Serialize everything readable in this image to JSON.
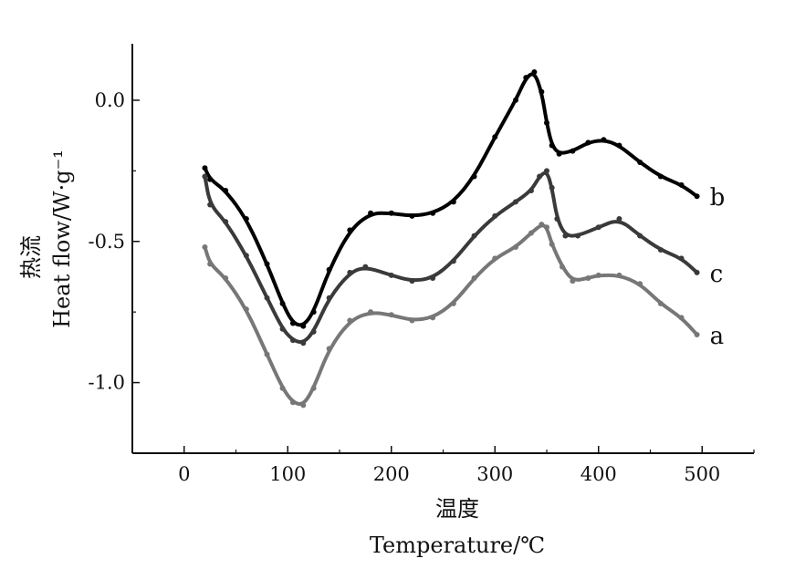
{
  "chart_data": {
    "type": "scatter",
    "xlabel_cn": "温度",
    "xlabel_en": "Temperature/℃",
    "ylabel_cn": "热流",
    "ylabel_en": "Heat  flow/W·g⁻¹",
    "xlim": [
      -50,
      550
    ],
    "ylim": [
      -1.25,
      0.2
    ],
    "x_ticks": [
      0,
      100,
      200,
      300,
      400,
      500
    ],
    "x_tick_labels": [
      "0",
      "100",
      "200",
      "300",
      "400",
      "500"
    ],
    "y_ticks": [
      0.0,
      -0.5,
      -1.0
    ],
    "y_tick_labels": [
      "0.0",
      "-0.5",
      "-1.0"
    ],
    "grid": false,
    "series": [
      {
        "name": "b",
        "color": "#000000",
        "points": [
          [
            20,
            -0.24
          ],
          [
            25,
            -0.28
          ],
          [
            40,
            -0.32
          ],
          [
            60,
            -0.42
          ],
          [
            80,
            -0.58
          ],
          [
            95,
            -0.72
          ],
          [
            105,
            -0.79
          ],
          [
            115,
            -0.8
          ],
          [
            125,
            -0.75
          ],
          [
            140,
            -0.6
          ],
          [
            160,
            -0.46
          ],
          [
            180,
            -0.4
          ],
          [
            200,
            -0.4
          ],
          [
            220,
            -0.41
          ],
          [
            240,
            -0.4
          ],
          [
            260,
            -0.36
          ],
          [
            280,
            -0.27
          ],
          [
            300,
            -0.13
          ],
          [
            320,
            0.0
          ],
          [
            330,
            0.08
          ],
          [
            338,
            0.1
          ],
          [
            345,
            0.03
          ],
          [
            350,
            -0.08
          ],
          [
            355,
            -0.16
          ],
          [
            362,
            -0.19
          ],
          [
            375,
            -0.18
          ],
          [
            390,
            -0.15
          ],
          [
            405,
            -0.14
          ],
          [
            420,
            -0.16
          ],
          [
            440,
            -0.22
          ],
          [
            460,
            -0.27
          ],
          [
            480,
            -0.3
          ],
          [
            495,
            -0.34
          ]
        ],
        "label_anchor": [
          495,
          -0.34
        ]
      },
      {
        "name": "c",
        "color": "#3a3a3a",
        "points": [
          [
            20,
            -0.27
          ],
          [
            25,
            -0.37
          ],
          [
            40,
            -0.43
          ],
          [
            60,
            -0.55
          ],
          [
            80,
            -0.7
          ],
          [
            95,
            -0.81
          ],
          [
            105,
            -0.85
          ],
          [
            115,
            -0.86
          ],
          [
            125,
            -0.82
          ],
          [
            140,
            -0.7
          ],
          [
            160,
            -0.61
          ],
          [
            175,
            -0.59
          ],
          [
            200,
            -0.62
          ],
          [
            220,
            -0.64
          ],
          [
            240,
            -0.63
          ],
          [
            260,
            -0.57
          ],
          [
            280,
            -0.48
          ],
          [
            300,
            -0.41
          ],
          [
            320,
            -0.36
          ],
          [
            335,
            -0.32
          ],
          [
            343,
            -0.27
          ],
          [
            350,
            -0.25
          ],
          [
            355,
            -0.31
          ],
          [
            360,
            -0.42
          ],
          [
            368,
            -0.48
          ],
          [
            380,
            -0.48
          ],
          [
            400,
            -0.45
          ],
          [
            420,
            -0.42
          ],
          [
            440,
            -0.48
          ],
          [
            460,
            -0.53
          ],
          [
            480,
            -0.56
          ],
          [
            495,
            -0.61
          ]
        ],
        "label_anchor": [
          495,
          -0.61
        ]
      },
      {
        "name": "a",
        "color": "#777777",
        "points": [
          [
            20,
            -0.52
          ],
          [
            25,
            -0.58
          ],
          [
            40,
            -0.63
          ],
          [
            60,
            -0.74
          ],
          [
            80,
            -0.9
          ],
          [
            95,
            -1.02
          ],
          [
            105,
            -1.07
          ],
          [
            115,
            -1.08
          ],
          [
            125,
            -1.02
          ],
          [
            140,
            -0.88
          ],
          [
            160,
            -0.78
          ],
          [
            180,
            -0.75
          ],
          [
            200,
            -0.76
          ],
          [
            220,
            -0.78
          ],
          [
            240,
            -0.77
          ],
          [
            260,
            -0.72
          ],
          [
            280,
            -0.63
          ],
          [
            300,
            -0.56
          ],
          [
            320,
            -0.52
          ],
          [
            335,
            -0.47
          ],
          [
            345,
            -0.44
          ],
          [
            350,
            -0.45
          ],
          [
            355,
            -0.51
          ],
          [
            365,
            -0.59
          ],
          [
            375,
            -0.64
          ],
          [
            390,
            -0.63
          ],
          [
            400,
            -0.62
          ],
          [
            420,
            -0.62
          ],
          [
            440,
            -0.65
          ],
          [
            460,
            -0.72
          ],
          [
            480,
            -0.77
          ],
          [
            495,
            -0.83
          ]
        ],
        "label_anchor": [
          495,
          -0.83
        ]
      }
    ]
  }
}
